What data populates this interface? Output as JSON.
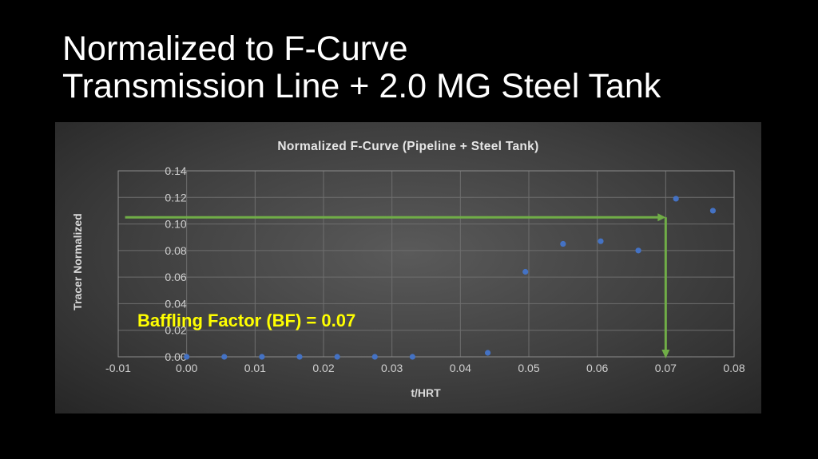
{
  "slide": {
    "title_line1": "Normalized to F-Curve",
    "title_line2": "Transmission Line + 2.0 MG Steel Tank"
  },
  "chart_data": {
    "type": "scatter",
    "title": "Normalized F-Curve (Pipeline + Steel Tank)",
    "xlabel": "t/HRT",
    "ylabel": "Tracer Normalized",
    "xlim": [
      -0.01,
      0.08
    ],
    "ylim": [
      0,
      0.14
    ],
    "x_ticks": [
      -0.01,
      0.0,
      0.01,
      0.02,
      0.03,
      0.04,
      0.05,
      0.06,
      0.07,
      0.08
    ],
    "x_tick_labels": [
      "-0.01",
      "0.00",
      "0.01",
      "0.02",
      "0.03",
      "0.04",
      "0.05",
      "0.06",
      "0.07",
      "0.08"
    ],
    "y_ticks": [
      0,
      0.02,
      0.04,
      0.06,
      0.08,
      0.1,
      0.12,
      0.14
    ],
    "y_tick_labels": [
      "0.00",
      "0.02",
      "0.04",
      "0.06",
      "0.08",
      "0.10",
      "0.12",
      "0.14"
    ],
    "grid": true,
    "marker_color": "#4472c4",
    "points": [
      {
        "x": 0.0,
        "y": 0.0
      },
      {
        "x": 0.0055,
        "y": 0.0
      },
      {
        "x": 0.011,
        "y": 0.0
      },
      {
        "x": 0.0165,
        "y": 0.0
      },
      {
        "x": 0.022,
        "y": 0.0
      },
      {
        "x": 0.0275,
        "y": 0.0
      },
      {
        "x": 0.033,
        "y": 0.0
      },
      {
        "x": 0.044,
        "y": 0.003
      },
      {
        "x": 0.0495,
        "y": 0.064
      },
      {
        "x": 0.055,
        "y": 0.085
      },
      {
        "x": 0.0605,
        "y": 0.087
      },
      {
        "x": 0.066,
        "y": 0.08
      },
      {
        "x": 0.0715,
        "y": 0.119
      },
      {
        "x": 0.0769,
        "y": 0.11
      }
    ],
    "annotation": {
      "text": "Baffling Factor (BF) = 0.07",
      "color": "#ffff00",
      "arrow_color": "#70ad47",
      "arrow_y": 0.105,
      "arrow_start_x": -0.009,
      "arrow_corner_x": 0.07,
      "arrow_end_y": 0.0
    }
  }
}
